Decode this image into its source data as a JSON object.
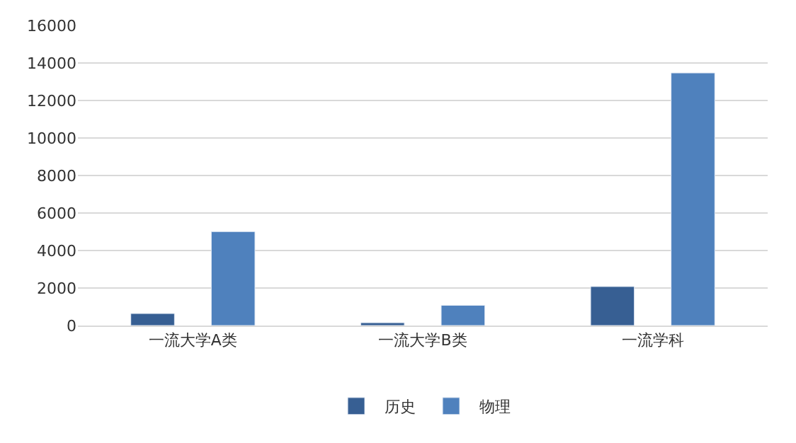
{
  "chart_data": {
    "type": "bar",
    "categories": [
      "一流大学A类",
      "一流大学B类",
      "一流学科"
    ],
    "series": [
      {
        "name": "历史",
        "color": "#375f93",
        "values": [
          640,
          150,
          2080
        ]
      },
      {
        "name": "物理",
        "color": "#4f81bd",
        "values": [
          5010,
          1080,
          13470
        ]
      }
    ],
    "ylim": [
      0,
      16000
    ],
    "yticks": [
      0,
      2000,
      4000,
      6000,
      8000,
      10000,
      12000,
      14000,
      16000
    ],
    "grid": "y",
    "legend": "bottom"
  }
}
